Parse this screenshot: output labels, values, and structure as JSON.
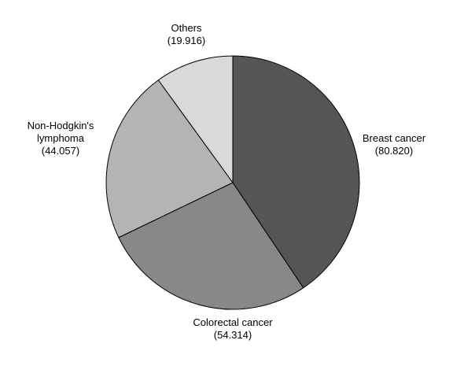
{
  "chart_data": {
    "type": "pie",
    "slices": [
      {
        "label_lines": [
          "Breast cancer"
        ],
        "value": 80.82,
        "value_text": "(80.820)",
        "color": "#555555"
      },
      {
        "label_lines": [
          "Colorectal cancer"
        ],
        "value": 54.314,
        "value_text": "(54.314)",
        "color": "#888888"
      },
      {
        "label_lines": [
          "Non-Hodgkin's",
          "lymphoma"
        ],
        "value": 44.057,
        "value_text": "(44.057)",
        "color": "#b4b4b4"
      },
      {
        "label_lines": [
          "Others"
        ],
        "value": 19.916,
        "value_text": "(19.916)",
        "color": "#d9d9d9"
      }
    ],
    "start_angle": "12 o'clock",
    "direction": "clockwise",
    "stroke_color": "#000000",
    "legend": "none"
  }
}
